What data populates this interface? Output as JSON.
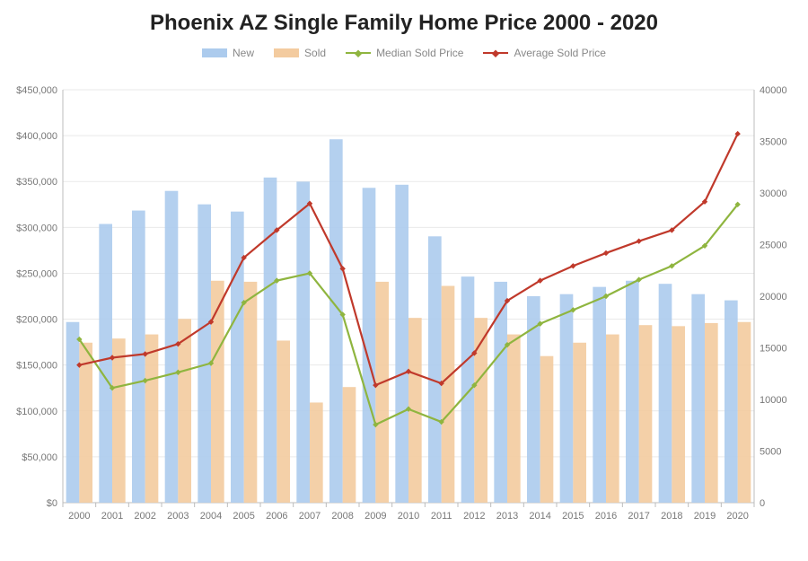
{
  "title": "Phoenix AZ Single Family Home Price 2000 - 2020",
  "legend": {
    "new": "New",
    "sold": "Sold",
    "median": "Median Sold Price",
    "average": "Average Sold Price"
  },
  "chart": {
    "type": "bar+line",
    "background_color": "#ffffff",
    "grid_color": "#e9e9e9",
    "axis_line_color": "#bcbcbc",
    "tick_label_color": "#777777",
    "title_fontsize": 24,
    "label_fontsize": 11,
    "legend_fontsize": 12,
    "categories": [
      "2000",
      "2001",
      "2002",
      "2003",
      "2004",
      "2005",
      "2006",
      "2007",
      "2008",
      "2009",
      "2010",
      "2011",
      "2012",
      "2013",
      "2014",
      "2015",
      "2016",
      "2017",
      "2018",
      "2019",
      "2020"
    ],
    "yleft": {
      "min": 0,
      "max": 450000,
      "step": 50000,
      "format": "currency",
      "labels": [
        "$0",
        "$50,000",
        "$100,000",
        "$150,000",
        "$200,000",
        "$250,000",
        "$300,000",
        "$350,000",
        "$400,000",
        "$450,000"
      ]
    },
    "yright": {
      "min": 0,
      "max": 40000,
      "step": 5000,
      "labels": [
        "0",
        "5000",
        "10000",
        "15000",
        "20000",
        "25000",
        "30000",
        "35000",
        "40000"
      ]
    },
    "colors": {
      "new": "#accbed",
      "sold": "#f3cb9f",
      "median": "#8fb53f",
      "average": "#c0392b"
    },
    "bar_group_width": 0.8,
    "series": {
      "new_counts": [
        17500,
        27000,
        28300,
        30200,
        28900,
        28200,
        31500,
        31100,
        35200,
        30500,
        30800,
        25800,
        21900,
        21400,
        20000,
        20200,
        20900,
        21500,
        21200,
        20200,
        19600
      ],
      "sold_counts": [
        15500,
        15900,
        16300,
        17800,
        21500,
        21400,
        15700,
        9700,
        11200,
        21400,
        17900,
        21000,
        17900,
        16300,
        14200,
        15500,
        16300,
        17200,
        17100,
        17400,
        17500
      ],
      "median_price": [
        178000,
        125000,
        133000,
        142000,
        152000,
        218000,
        242000,
        250000,
        205000,
        85000,
        102000,
        88000,
        128000,
        172000,
        195000,
        210000,
        225000,
        243000,
        258000,
        280000,
        325000
      ],
      "average_price": [
        150000,
        158000,
        162000,
        173000,
        197000,
        267000,
        297000,
        326000,
        255000,
        128000,
        143000,
        130000,
        163000,
        220000,
        242000,
        258000,
        272000,
        285000,
        297000,
        328000,
        402000
      ]
    },
    "marker_shape": "diamond",
    "line_width": 2.2
  }
}
